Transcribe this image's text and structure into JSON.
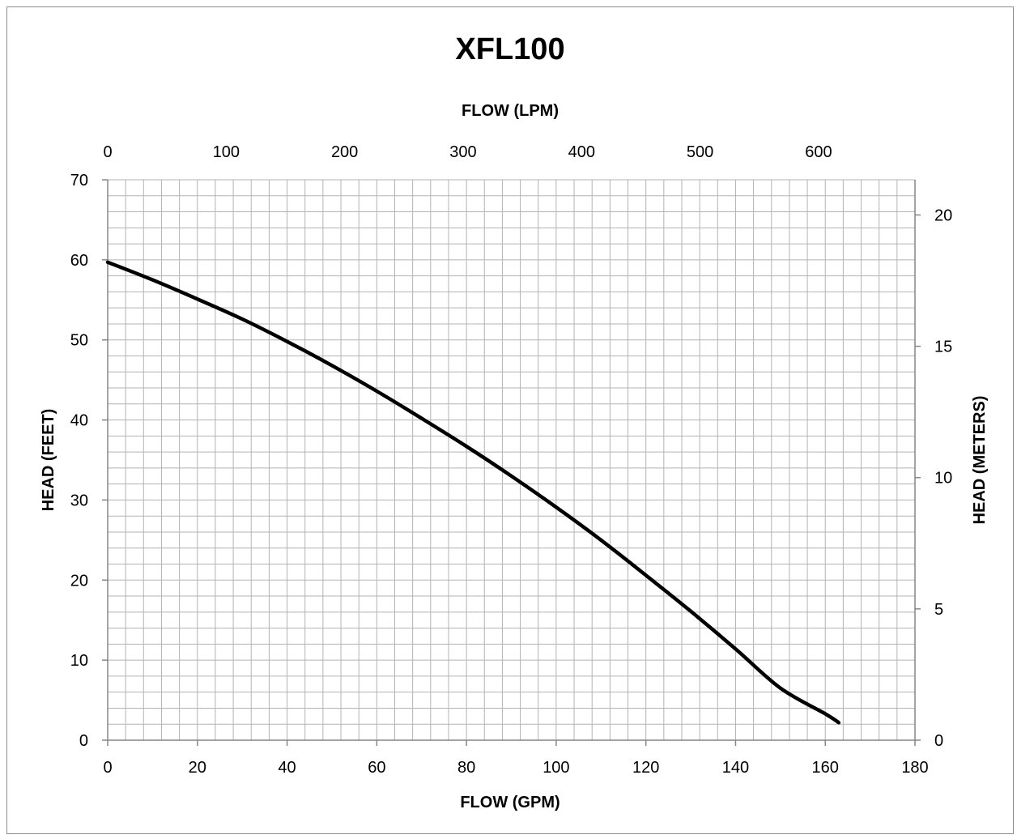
{
  "chart_data": {
    "type": "line",
    "title": "XFL100",
    "xlabel": "FLOW (GPM)",
    "x2label": "FLOW (LPM)",
    "ylabel": "HEAD (FEET)",
    "y2label": "HEAD (METERS)",
    "xlim": [
      0,
      180
    ],
    "ylim": [
      0,
      70
    ],
    "x2lim": [
      0,
      681.4
    ],
    "y2lim": [
      0,
      21.34
    ],
    "x_ticks": [
      0,
      20,
      40,
      60,
      80,
      100,
      120,
      140,
      160,
      180
    ],
    "y_ticks": [
      0,
      10,
      20,
      30,
      40,
      50,
      60,
      70
    ],
    "x2_ticks": [
      0,
      100,
      200,
      300,
      400,
      500,
      600
    ],
    "y2_ticks": [
      0,
      5,
      10,
      15,
      20
    ],
    "grid": true,
    "series": [
      {
        "x": [
          0,
          10,
          20,
          30,
          40,
          50,
          60,
          70,
          80,
          90,
          100,
          110,
          120,
          130,
          140,
          150,
          160,
          163
        ],
        "y": [
          59.7,
          57.5,
          55.1,
          52.6,
          49.8,
          46.8,
          43.6,
          40.2,
          36.7,
          33.0,
          29.1,
          25.0,
          20.6,
          16.1,
          11.4,
          6.5,
          3.3,
          2.2
        ],
        "color": "#000000"
      }
    ]
  }
}
